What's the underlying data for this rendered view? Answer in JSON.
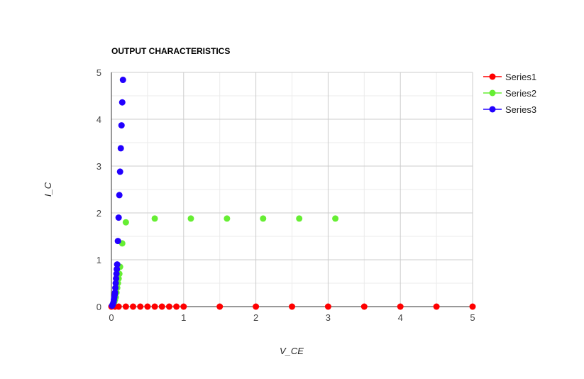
{
  "chart_data": {
    "type": "scatter",
    "title": "OUTPUT CHARACTERISTICS",
    "xlabel": "V_CE",
    "ylabel": "I_C",
    "xlim": [
      0,
      5
    ],
    "ylim": [
      0,
      5
    ],
    "xticks": [
      "0",
      "1",
      "2",
      "3",
      "4",
      "5"
    ],
    "yticks": [
      "0",
      "1",
      "2",
      "3",
      "4",
      "5"
    ],
    "grid": true,
    "legend_position": "right-top",
    "series": [
      {
        "name": "Series1",
        "color": "#ff0000",
        "x": [
          0,
          0.05,
          0.1,
          0.2,
          0.3,
          0.4,
          0.5,
          0.6,
          0.7,
          0.8,
          0.9,
          1.0,
          1.5,
          2.0,
          2.5,
          3.0,
          3.5,
          4.0,
          4.5,
          5.0
        ],
        "y": [
          0,
          0,
          0,
          0,
          0,
          0,
          0,
          0,
          0,
          0,
          0,
          0,
          0,
          0,
          0,
          0,
          0,
          0,
          0,
          0
        ]
      },
      {
        "name": "Series2",
        "color": "#66ee33",
        "x": [
          0.02,
          0.04,
          0.05,
          0.06,
          0.07,
          0.08,
          0.09,
          0.1,
          0.11,
          0.12,
          0.15,
          0.2,
          0.6,
          1.1,
          1.6,
          2.1,
          2.6,
          3.1
        ],
        "y": [
          0.05,
          0.1,
          0.15,
          0.2,
          0.3,
          0.4,
          0.5,
          0.6,
          0.7,
          0.85,
          1.35,
          1.8,
          1.88,
          1.88,
          1.88,
          1.88,
          1.88,
          1.88
        ]
      },
      {
        "name": "Series3",
        "color": "#2200ff",
        "x": [
          0.01,
          0.02,
          0.03,
          0.035,
          0.04,
          0.045,
          0.05,
          0.055,
          0.06,
          0.065,
          0.07,
          0.075,
          0.08,
          0.09,
          0.1,
          0.11,
          0.12,
          0.13,
          0.14,
          0.15,
          0.16
        ],
        "y": [
          0.02,
          0.05,
          0.1,
          0.15,
          0.2,
          0.25,
          0.3,
          0.4,
          0.5,
          0.6,
          0.7,
          0.8,
          0.9,
          1.4,
          1.9,
          2.38,
          2.88,
          3.38,
          3.87,
          4.36,
          4.84
        ]
      }
    ]
  }
}
